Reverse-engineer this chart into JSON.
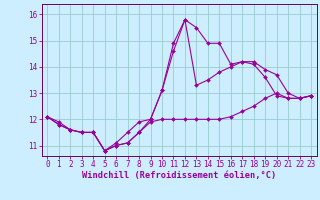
{
  "xlabel": "Windchill (Refroidissement éolien,°C)",
  "background_color": "#cceeff",
  "grid_color": "#99cccc",
  "line_color": "#990099",
  "spine_color": "#660066",
  "x_ticks": [
    0,
    1,
    2,
    3,
    4,
    5,
    6,
    7,
    8,
    9,
    10,
    11,
    12,
    13,
    14,
    15,
    16,
    17,
    18,
    19,
    20,
    21,
    22,
    23
  ],
  "y_ticks": [
    11,
    12,
    13,
    14,
    15,
    16
  ],
  "xlim": [
    -0.5,
    23.5
  ],
  "ylim": [
    10.6,
    16.4
  ],
  "tick_fontsize": 5.5,
  "xlabel_fontsize": 6.2,
  "series": [
    [
      12.1,
      11.8,
      11.6,
      11.5,
      11.5,
      10.8,
      11.0,
      11.1,
      11.5,
      11.9,
      12.0,
      12.0,
      12.0,
      12.0,
      12.0,
      12.0,
      12.1,
      12.3,
      12.5,
      12.8,
      13.0,
      12.8,
      12.8,
      12.9
    ],
    [
      12.1,
      11.9,
      11.6,
      11.5,
      11.5,
      10.8,
      11.1,
      11.5,
      11.9,
      12.0,
      13.1,
      14.6,
      15.8,
      15.5,
      14.9,
      14.9,
      14.1,
      14.2,
      14.1,
      13.6,
      12.9,
      12.8,
      12.8,
      12.9
    ],
    [
      12.1,
      11.8,
      11.6,
      11.5,
      11.5,
      10.8,
      11.0,
      11.1,
      11.5,
      12.0,
      13.1,
      14.9,
      15.8,
      13.3,
      13.5,
      13.8,
      14.0,
      14.2,
      14.2,
      13.9,
      13.7,
      13.0,
      12.8,
      12.9
    ]
  ]
}
